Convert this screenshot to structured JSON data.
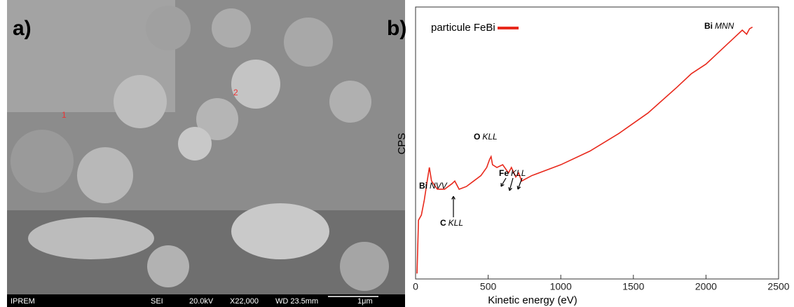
{
  "panel_a": {
    "label": "a)",
    "markers": [
      "1",
      "2"
    ],
    "info_bar": [
      "IPREM",
      "SEI",
      "20.0kV",
      "X22,000",
      "WD 23.5mm",
      "1μm"
    ]
  },
  "chart_data": {
    "type": "line",
    "panel_label": "b)",
    "x_label": "Kinetic energy (eV)",
    "y_label": "CPS",
    "x": [
      10,
      20,
      40,
      60,
      80,
      95,
      110,
      150,
      200,
      250,
      270,
      300,
      350,
      400,
      450,
      490,
      510,
      520,
      530,
      560,
      600,
      640,
      660,
      690,
      710,
      730,
      800,
      1000,
      1200,
      1400,
      1600,
      1800,
      1900,
      2000,
      2100,
      2200,
      2250,
      2280,
      2300,
      2320
    ],
    "series": [
      {
        "name": "particule FeBi",
        "color": "#e8291c",
        "values": [
          2,
          21.6,
          23.5,
          29,
          36,
          41,
          36,
          33,
          33,
          35,
          36,
          33,
          34,
          36,
          38,
          41,
          44,
          45,
          42,
          41,
          42,
          39,
          41,
          37.5,
          39,
          36,
          38,
          42,
          47,
          53.5,
          61,
          70.5,
          75.5,
          79,
          84,
          89,
          91.5,
          90,
          92,
          92.6
        ]
      }
    ],
    "xlim": [
      0,
      2500
    ],
    "xticks": [
      0,
      500,
      1000,
      1500,
      2000,
      2500
    ],
    "ylim": [
      0,
      100
    ],
    "annotations": [
      {
        "element": "Bi",
        "transition": "NVV"
      },
      {
        "element": "C",
        "transition": "KLL"
      },
      {
        "element": "O",
        "transition": "KLL"
      },
      {
        "element": "Fe",
        "transition": "KLL"
      },
      {
        "element": "Bi",
        "transition": "MNN"
      }
    ]
  }
}
